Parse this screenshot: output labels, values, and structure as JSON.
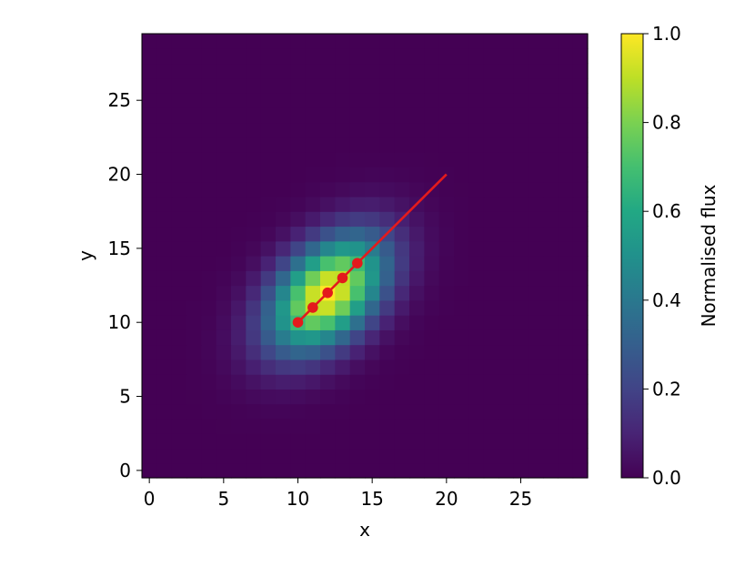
{
  "chart_data": {
    "type": "heatmap",
    "title": "",
    "xlabel": "x",
    "ylabel": "y",
    "xlim": [
      -0.5,
      29.5
    ],
    "ylim": [
      -0.5,
      29.5
    ],
    "x_ticks": [
      0,
      5,
      10,
      15,
      20,
      25
    ],
    "y_ticks": [
      0,
      5,
      10,
      15,
      20,
      25
    ],
    "grid": false,
    "colormap": "viridis",
    "grid_size": [
      30,
      30
    ],
    "heatmap": {
      "description_values": "Elliptical Gaussian source, peak normalised flux 1.0",
      "center": [
        12,
        12
      ],
      "sigma_major": 3.2,
      "sigma_minor": 2.0,
      "angle_deg": 45
    },
    "colorbar": {
      "label": "Normalised flux",
      "range": [
        0.0,
        1.0
      ],
      "ticks": [
        "0.0",
        "0.2",
        "0.4",
        "0.6",
        "0.8",
        "1.0"
      ]
    },
    "series": [
      {
        "type": "line",
        "color": "#e41a1c",
        "x": [
          10,
          20
        ],
        "y": [
          10,
          20
        ]
      },
      {
        "type": "scatter",
        "color": "#e41a1c",
        "x": [
          10,
          11,
          12,
          13,
          14
        ],
        "y": [
          10,
          11,
          12,
          13,
          14
        ]
      }
    ]
  }
}
